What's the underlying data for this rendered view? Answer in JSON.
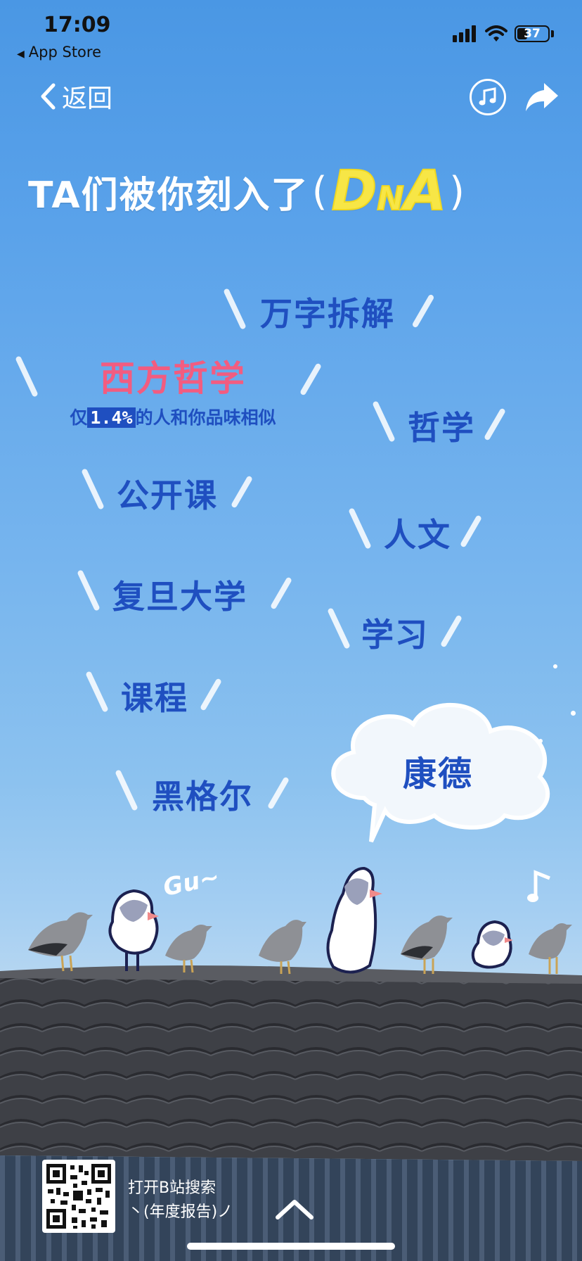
{
  "status": {
    "time": "17:09",
    "back_app": "App Store",
    "battery": "37"
  },
  "nav": {
    "back_label": "返回"
  },
  "title": {
    "prefix": "TA们被你刻入了",
    "open": "(",
    "dna_d": "D",
    "dna_n": "N",
    "dna_a": "A",
    "close": ")"
  },
  "highlight": {
    "tag": "西方哲学",
    "sub_prefix": "仅",
    "percent": "1.4%",
    "sub_suffix": "的人和你品味相似"
  },
  "tags": [
    "万字拆解",
    "哲学",
    "公开课",
    "人文",
    "复旦大学",
    "学习",
    "课程",
    "黑格尔"
  ],
  "cloud_tag": "康德",
  "scene": {
    "gu_text": "Gu~"
  },
  "footer": {
    "line1": "打开B站搜索",
    "line2": "丶(年度报告)ノ"
  },
  "colors": {
    "tag_blue": "#1f4fc0",
    "highlight_pink": "#f25c80",
    "dna_yellow": "#f7e646"
  }
}
